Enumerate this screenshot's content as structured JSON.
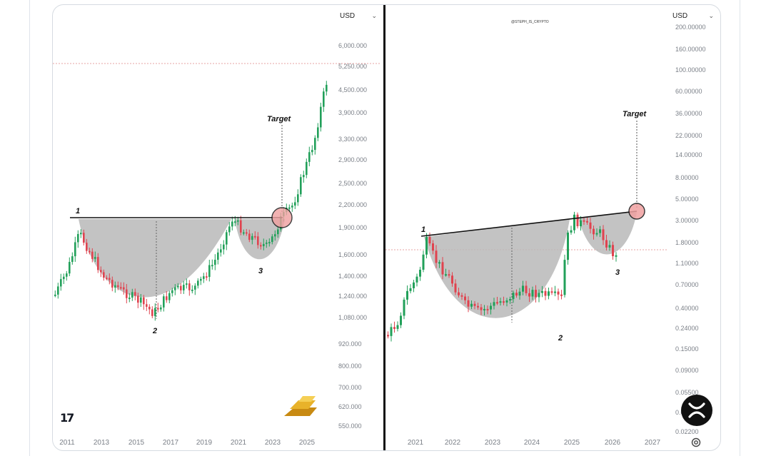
{
  "header": {
    "watermark": "@STEPH_IS_CRYPTO"
  },
  "left": {
    "currency_label": "USD",
    "y_ticks": [
      "6,000.000",
      "5,250.000",
      "4,500.000",
      "3,900.000",
      "3,300.000",
      "2,900.000",
      "2,500.000",
      "2,200.000",
      "1,900.000",
      "1,600.000",
      "1,400.000",
      "1,240.000",
      "1,080.000",
      "920.000",
      "800.000",
      "700.000",
      "620.000",
      "550.000"
    ],
    "x_ticks": [
      "2011",
      "2013",
      "2015",
      "2017",
      "2019",
      "2021",
      "2023",
      "2025"
    ],
    "labels": {
      "p1": "1",
      "p2": "2",
      "p3": "3",
      "target": "Target"
    },
    "logo_text": "17",
    "icon": "gold-bars-icon"
  },
  "right": {
    "currency_label": "USD",
    "y_ticks": [
      "200.00000",
      "160.00000",
      "100.00000",
      "60.00000",
      "36.00000",
      "22.00000",
      "14.00000",
      "8.00000",
      "5.00000",
      "3.00000",
      "1.80000",
      "1.10000",
      "0.70000",
      "0.40000",
      "0.24000",
      "0.15000",
      "0.09000",
      "0.05500",
      "0.03500",
      "0.02200"
    ],
    "x_ticks": [
      "2021",
      "2022",
      "2023",
      "2024",
      "2025",
      "2026",
      "2027"
    ],
    "labels": {
      "p1": "1",
      "p2": "2",
      "p3": "3",
      "target": "Target"
    },
    "icon": "xrp-logo-icon"
  },
  "colors": {
    "up": "#22a05a",
    "down": "#e0434f",
    "cup_fill": "#b9b9b9",
    "target_circle": "#f0a0a0",
    "axis_text": "#7a7f87"
  },
  "chart_data": [
    {
      "type": "candlestick",
      "title": "",
      "xlabel": "",
      "ylabel": "",
      "ylim": [
        550,
        6000
      ],
      "y_scale": "log",
      "x_range": [
        "2011",
        "2025"
      ],
      "annotations": [
        "1",
        "2",
        "3",
        "Target"
      ],
      "x": [
        "2011",
        "2012",
        "2013",
        "2014",
        "2015",
        "2016",
        "2017",
        "2018",
        "2019",
        "2020",
        "2021",
        "2022",
        "2023",
        "2024",
        "2025"
      ],
      "values": [
        1400,
        1800,
        1400,
        1250,
        1100,
        1150,
        1250,
        1300,
        1450,
        1900,
        1800,
        1800,
        1900,
        2600,
        5250
      ],
      "resistance_level": 1900,
      "target_level": 1900
    },
    {
      "type": "candlestick",
      "title": "",
      "xlabel": "",
      "ylabel": "",
      "ylim": [
        0.022,
        200
      ],
      "y_scale": "log",
      "x_range": [
        "2021",
        "2027"
      ],
      "annotations": [
        "1",
        "2",
        "3",
        "Target"
      ],
      "x": [
        "2021",
        "2022",
        "2023",
        "2024",
        "2025",
        "2026"
      ],
      "values": [
        1.5,
        0.8,
        0.4,
        0.5,
        2.5,
        1.5
      ],
      "resistance_level": 3.0,
      "target_level": 3.5
    }
  ]
}
